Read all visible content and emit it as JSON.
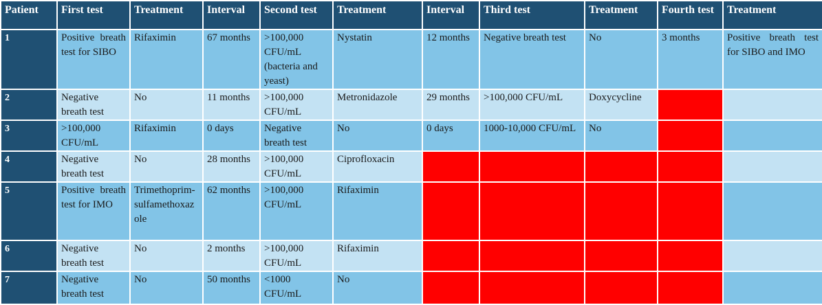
{
  "headers": [
    "Patient",
    "First test",
    "Treatment",
    "Interval",
    "Second test",
    "Treatment",
    "Interval",
    "Third test",
    "Treatment",
    "Fourth test",
    "Treatment"
  ],
  "rows": [
    {
      "patient": "1",
      "cells": [
        "Positive breath test for SIBO",
        "Rifaximin",
        "67 months",
        ">100,000 CFU/mL (bacteria and yeast)",
        "Nystatin",
        "12 months",
        "Negative breath test",
        "No",
        "3 months",
        "Positive breath test for SIBO and IMO"
      ]
    },
    {
      "patient": "2",
      "cells": [
        "Negative breath test",
        "No",
        "11 months",
        ">100,000 CFU/mL",
        "Metronidazole",
        "29 months",
        ">100,000 CFU/mL",
        "Doxycycline",
        "",
        ""
      ]
    },
    {
      "patient": "3",
      "cells": [
        ">100,000 CFU/mL",
        "Rifaximin",
        "0 days",
        "Negative breath test",
        "No",
        "0 days",
        "1000-10,000 CFU/mL",
        "No",
        "",
        ""
      ]
    },
    {
      "patient": "4",
      "cells": [
        "Negative breath test",
        "No",
        "28 months",
        ">100,000 CFU/mL",
        "Ciprofloxacin",
        "",
        "",
        "",
        "",
        ""
      ]
    },
    {
      "patient": "5",
      "cells": [
        "Positive breath test for IMO",
        "Trimethoprim-sulfamethoxazole",
        "62 months",
        ">100,000 CFU/mL",
        "Rifaximin",
        "",
        "",
        "",
        "",
        ""
      ]
    },
    {
      "patient": "6",
      "cells": [
        "Negative breath test",
        "No",
        "2 months",
        ">100,000 CFU/mL",
        "Rifaximin",
        "",
        "",
        "",
        "",
        ""
      ]
    },
    {
      "patient": "7",
      "cells": [
        "Negative breath test",
        "No",
        "50 months",
        "<1000 CFU/mL",
        "No",
        "",
        "",
        "",
        "",
        ""
      ]
    }
  ],
  "colors": {
    "header_bg": "#1f5073",
    "row_dark": "#82c4e7",
    "row_light": "#c3e2f3",
    "not_applicable": "#ff0000"
  }
}
